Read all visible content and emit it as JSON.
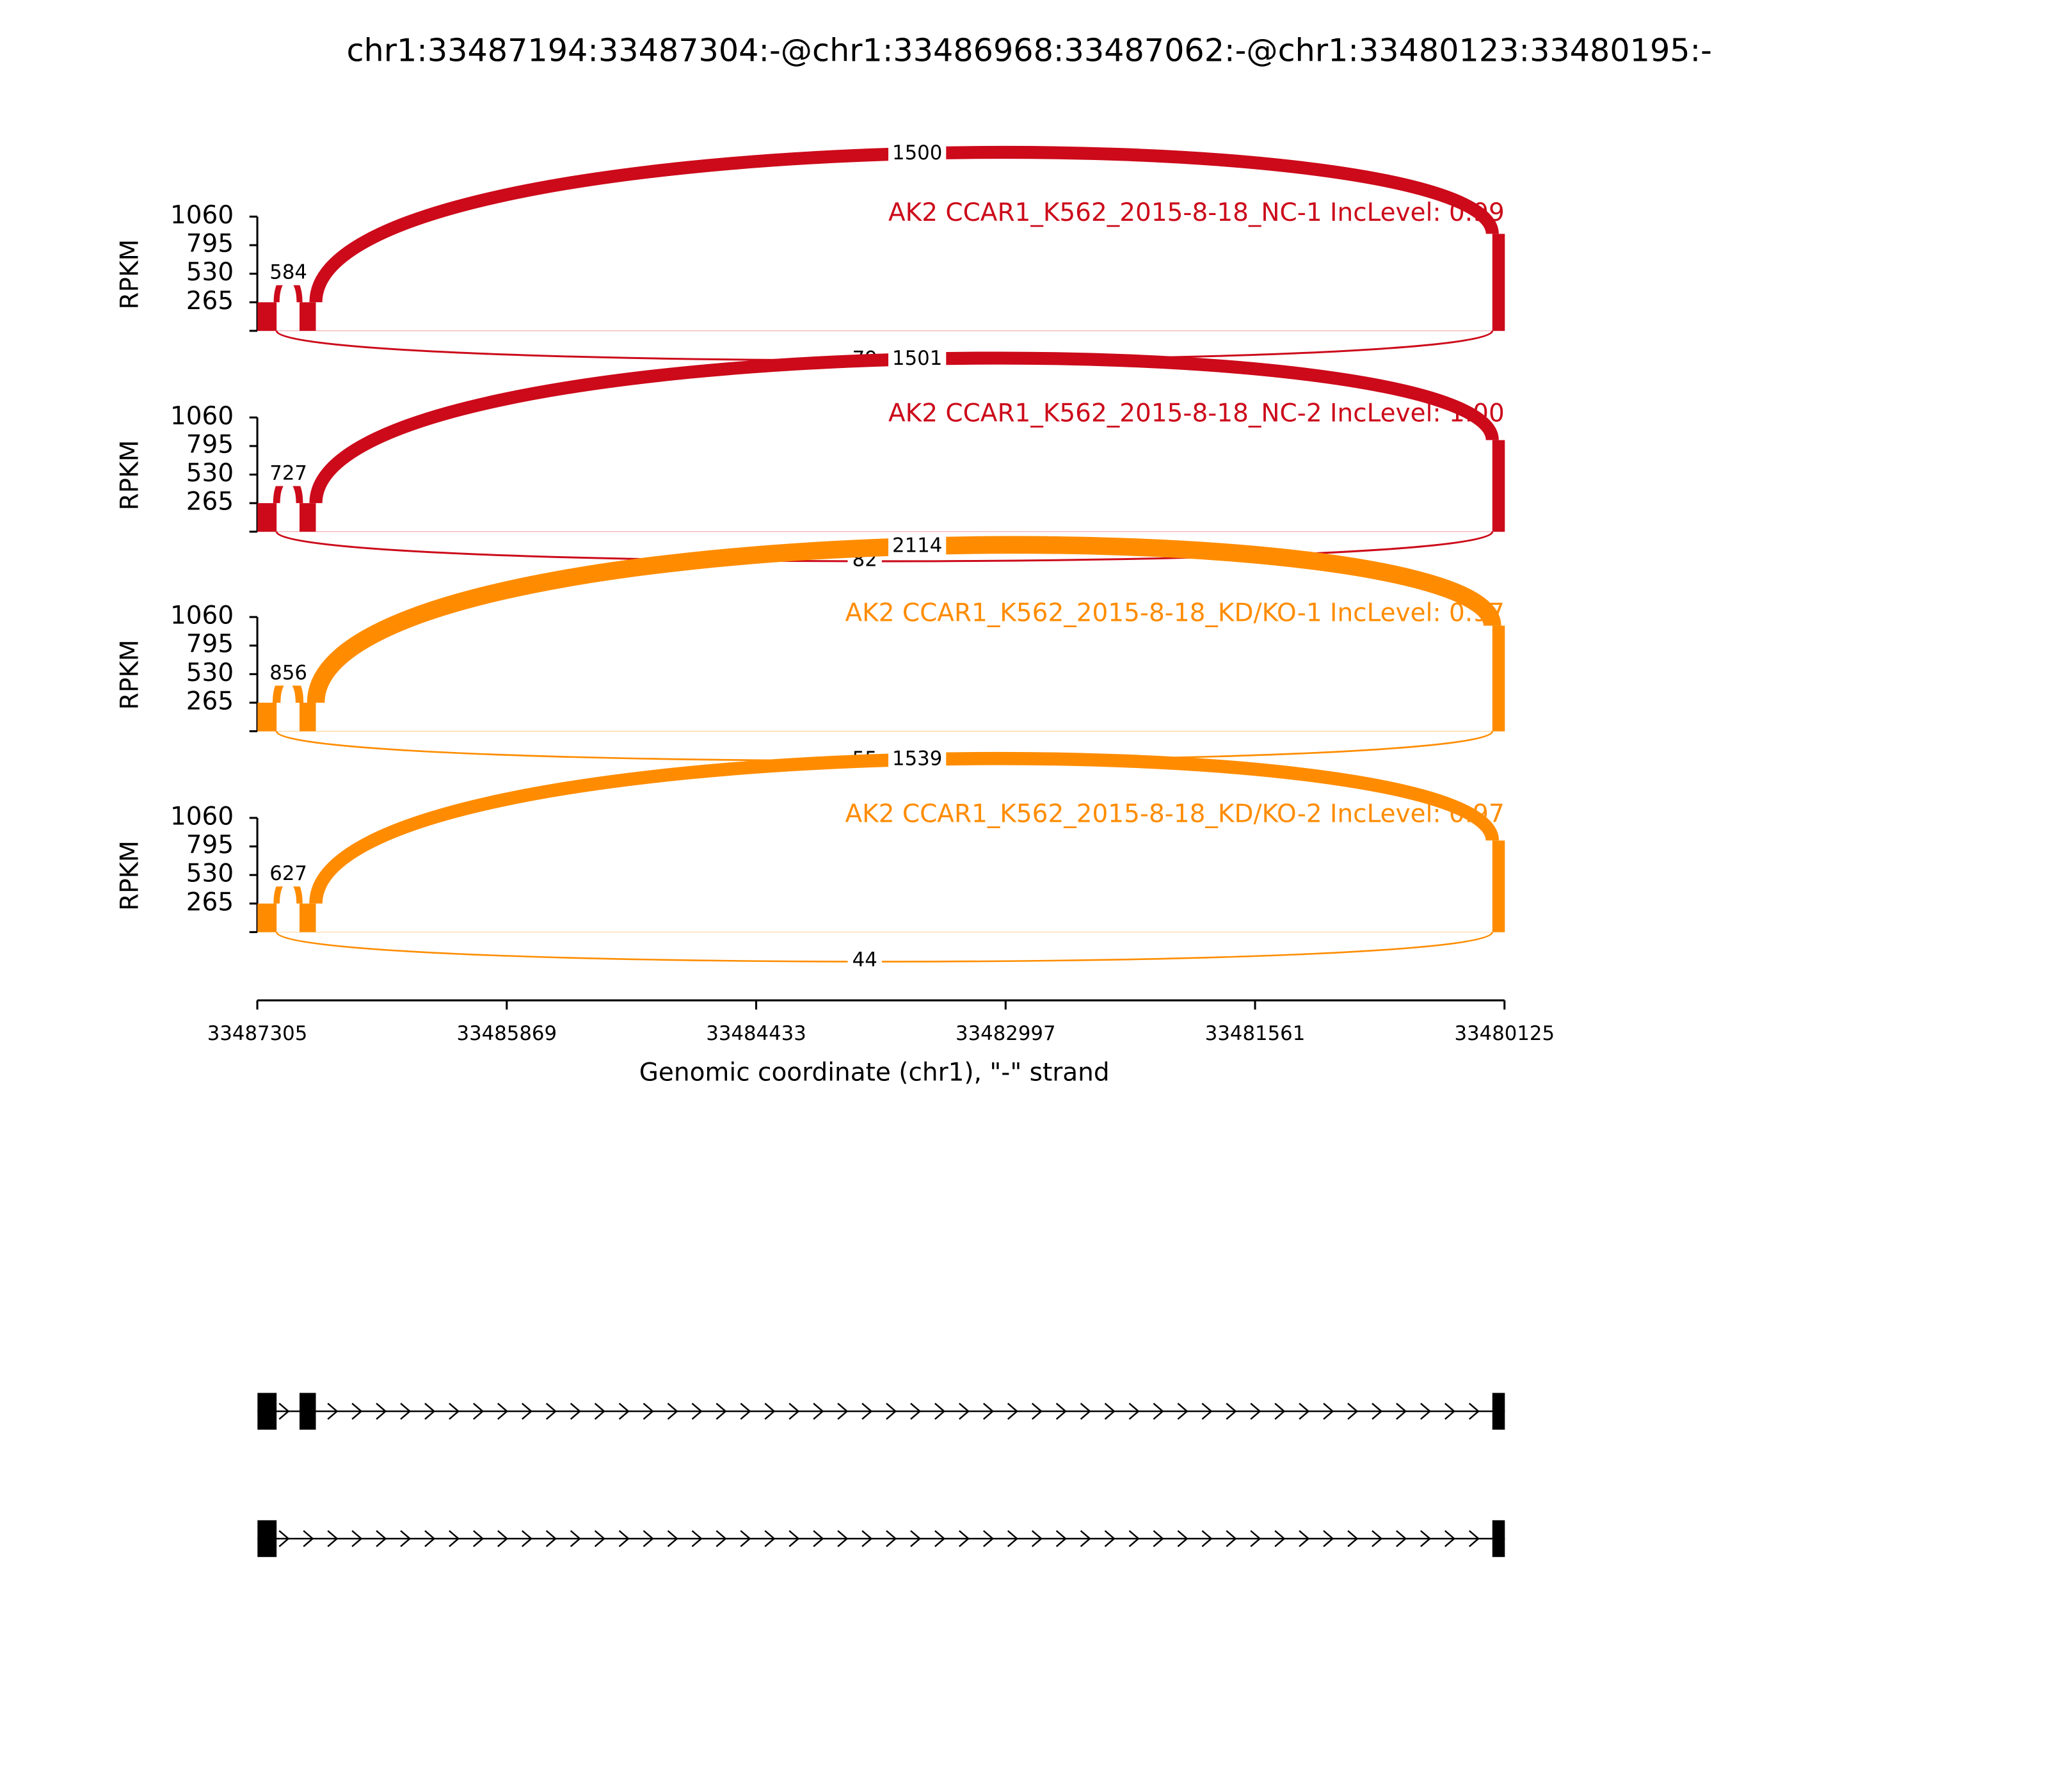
{
  "chart_data": {
    "type": "sashimi",
    "title": "chr1:33487194:33487304:-@chr1:33486968:33487062:-@chr1:33480123:33480195:-",
    "ylabel": "RPKM",
    "ylim": [
      0,
      1060
    ],
    "yticks": [
      265,
      530,
      795,
      1060
    ],
    "xlabel": "Genomic coordinate (chr1), \"-\" strand",
    "xlim": [
      33487305,
      33480125
    ],
    "xticks": [
      33487305,
      33485869,
      33484433,
      33482997,
      33481561,
      33480125
    ],
    "exons": [
      [
        33487194,
        33487304
      ],
      [
        33486968,
        33487062
      ],
      [
        33480123,
        33480195
      ]
    ],
    "transcripts": [
      [
        0,
        1,
        2
      ],
      [
        0,
        2
      ]
    ],
    "samples": [
      {
        "name": "AK2 CCAR1_K562_2015-8-18_NC-1 IncLevel: 0.99",
        "color": "#cc0a1a",
        "coverage": [
          265,
          265,
          900
        ],
        "junctions": [
          584,
          1500,
          79
        ]
      },
      {
        "name": "AK2 CCAR1_K562_2015-8-18_NC-2 IncLevel: 1.00",
        "color": "#cc0a1a",
        "coverage": [
          265,
          265,
          850
        ],
        "junctions": [
          727,
          1501,
          82
        ]
      },
      {
        "name": "AK2 CCAR1_K562_2015-8-18_KD/KO-1 IncLevel: 0.97",
        "color": "#ff8c00",
        "coverage": [
          265,
          265,
          980
        ],
        "junctions": [
          856,
          2114,
          55
        ]
      },
      {
        "name": "AK2 CCAR1_K562_2015-8-18_KD/KO-2 IncLevel: 0.97",
        "color": "#ff8c00",
        "coverage": [
          265,
          265,
          850
        ],
        "junctions": [
          627,
          1539,
          44
        ]
      }
    ]
  }
}
